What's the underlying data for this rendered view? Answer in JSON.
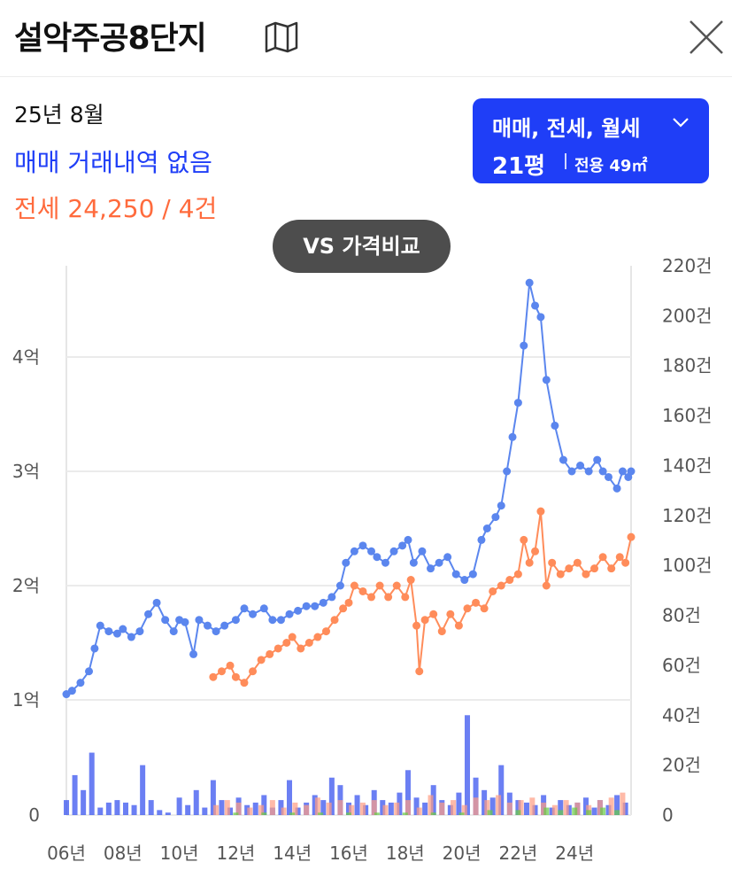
{
  "header": {
    "title": "설악주공8단지",
    "map_icon": "map-icon",
    "close_icon": "close-icon"
  },
  "summary": {
    "date": "25년 8월",
    "sale_text": "매매 거래내역 없음",
    "jeonse_text": "전세 24,250 / 4건"
  },
  "filter": {
    "types": "매매, 전세, 월세",
    "size": "21평",
    "area": "전용 49㎡"
  },
  "vs_button": "VS 가격비교",
  "colors": {
    "sale": "#5b86ee",
    "jeonse": "#ff8c5a",
    "sale_bar": "#3a54ef",
    "jeonse_bar": "#ff9c83",
    "monthly_bar": "#66cc44",
    "accent": "#1f3ef7",
    "jeonse_text": "#ff6b3d"
  },
  "chart_data": {
    "type": "line",
    "x_ticks": [
      "06년",
      "08년",
      "10년",
      "12년",
      "14년",
      "16년",
      "18년",
      "20년",
      "22년",
      "24년"
    ],
    "y_left_ticks": [
      "0",
      "1억",
      "2억",
      "3억",
      "4억"
    ],
    "y_right_ticks": [
      "0",
      "20건",
      "40건",
      "60건",
      "80건",
      "100건",
      "120건",
      "140건",
      "160건",
      "180건",
      "200건",
      "220건"
    ],
    "y_left_range": [
      0,
      48000
    ],
    "y_right_range": [
      0,
      220
    ],
    "series": [
      {
        "name": "매매",
        "points": [
          [
            2006.0,
            10500
          ],
          [
            2006.2,
            10800
          ],
          [
            2006.5,
            11500
          ],
          [
            2006.8,
            12500
          ],
          [
            2007.0,
            14500
          ],
          [
            2007.2,
            16500
          ],
          [
            2007.5,
            16000
          ],
          [
            2007.8,
            15800
          ],
          [
            2008.0,
            16200
          ],
          [
            2008.3,
            15500
          ],
          [
            2008.6,
            16000
          ],
          [
            2008.9,
            17500
          ],
          [
            2009.2,
            18500
          ],
          [
            2009.5,
            17000
          ],
          [
            2009.8,
            16000
          ],
          [
            2010.0,
            17000
          ],
          [
            2010.2,
            16800
          ],
          [
            2010.5,
            14000
          ],
          [
            2010.7,
            17000
          ],
          [
            2011.0,
            16500
          ],
          [
            2011.3,
            16000
          ],
          [
            2011.6,
            16500
          ],
          [
            2012.0,
            17000
          ],
          [
            2012.3,
            18000
          ],
          [
            2012.6,
            17500
          ],
          [
            2013.0,
            18000
          ],
          [
            2013.3,
            17000
          ],
          [
            2013.6,
            17000
          ],
          [
            2013.9,
            17500
          ],
          [
            2014.2,
            17800
          ],
          [
            2014.5,
            18200
          ],
          [
            2014.8,
            18200
          ],
          [
            2015.1,
            18500
          ],
          [
            2015.4,
            19000
          ],
          [
            2015.7,
            20000
          ],
          [
            2015.9,
            22000
          ],
          [
            2016.2,
            23000
          ],
          [
            2016.5,
            23500
          ],
          [
            2016.8,
            23000
          ],
          [
            2017.0,
            22500
          ],
          [
            2017.3,
            22000
          ],
          [
            2017.6,
            23000
          ],
          [
            2017.9,
            23500
          ],
          [
            2018.1,
            24000
          ],
          [
            2018.3,
            22000
          ],
          [
            2018.6,
            23000
          ],
          [
            2018.9,
            21500
          ],
          [
            2019.2,
            22000
          ],
          [
            2019.5,
            22500
          ],
          [
            2019.8,
            21000
          ],
          [
            2020.1,
            20500
          ],
          [
            2020.4,
            21000
          ],
          [
            2020.7,
            24000
          ],
          [
            2020.9,
            25000
          ],
          [
            2021.2,
            26000
          ],
          [
            2021.4,
            27000
          ],
          [
            2021.6,
            30000
          ],
          [
            2021.8,
            33000
          ],
          [
            2022.0,
            36000
          ],
          [
            2022.2,
            41000
          ],
          [
            2022.4,
            46500
          ],
          [
            2022.6,
            44500
          ],
          [
            2022.8,
            43500
          ],
          [
            2023.0,
            38000
          ],
          [
            2023.3,
            34000
          ],
          [
            2023.6,
            31000
          ],
          [
            2023.9,
            30000
          ],
          [
            2024.2,
            30500
          ],
          [
            2024.5,
            30000
          ],
          [
            2024.8,
            31000
          ],
          [
            2025.0,
            30000
          ],
          [
            2025.2,
            29500
          ],
          [
            2025.5,
            28500
          ],
          [
            2025.7,
            30000
          ],
          [
            2025.9,
            29500
          ],
          [
            2026.0,
            30000
          ]
        ]
      },
      {
        "name": "전세",
        "points": [
          [
            2011.2,
            12000
          ],
          [
            2011.5,
            12500
          ],
          [
            2011.8,
            13000
          ],
          [
            2012.0,
            12000
          ],
          [
            2012.3,
            11500
          ],
          [
            2012.6,
            12500
          ],
          [
            2012.9,
            13500
          ],
          [
            2013.2,
            14000
          ],
          [
            2013.5,
            14500
          ],
          [
            2013.8,
            15000
          ],
          [
            2014.0,
            15500
          ],
          [
            2014.3,
            14500
          ],
          [
            2014.6,
            15000
          ],
          [
            2014.9,
            15500
          ],
          [
            2015.2,
            16000
          ],
          [
            2015.5,
            17000
          ],
          [
            2015.8,
            18000
          ],
          [
            2016.0,
            18500
          ],
          [
            2016.2,
            20000
          ],
          [
            2016.5,
            19500
          ],
          [
            2016.8,
            19000
          ],
          [
            2017.1,
            20000
          ],
          [
            2017.4,
            19000
          ],
          [
            2017.7,
            20000
          ],
          [
            2018.0,
            19000
          ],
          [
            2018.2,
            20500
          ],
          [
            2018.4,
            16500
          ],
          [
            2018.5,
            12500
          ],
          [
            2018.7,
            17000
          ],
          [
            2019.0,
            17500
          ],
          [
            2019.3,
            16000
          ],
          [
            2019.6,
            17500
          ],
          [
            2019.9,
            16500
          ],
          [
            2020.2,
            18000
          ],
          [
            2020.5,
            18500
          ],
          [
            2020.8,
            18000
          ],
          [
            2021.1,
            19500
          ],
          [
            2021.4,
            20000
          ],
          [
            2021.7,
            20500
          ],
          [
            2022.0,
            21000
          ],
          [
            2022.2,
            24000
          ],
          [
            2022.4,
            22000
          ],
          [
            2022.6,
            23000
          ],
          [
            2022.8,
            26500
          ],
          [
            2023.0,
            20000
          ],
          [
            2023.2,
            22000
          ],
          [
            2023.5,
            21000
          ],
          [
            2023.8,
            21500
          ],
          [
            2024.1,
            22000
          ],
          [
            2024.4,
            21000
          ],
          [
            2024.7,
            21500
          ],
          [
            2025.0,
            22500
          ],
          [
            2025.3,
            21500
          ],
          [
            2025.6,
            22500
          ],
          [
            2025.8,
            22000
          ],
          [
            2026.0,
            24250
          ]
        ]
      }
    ],
    "bars": [
      {
        "name": "매매",
        "points": [
          [
            2006.0,
            6
          ],
          [
            2006.3,
            16
          ],
          [
            2006.6,
            10
          ],
          [
            2006.9,
            25
          ],
          [
            2007.2,
            3
          ],
          [
            2007.5,
            5
          ],
          [
            2007.8,
            6
          ],
          [
            2008.1,
            5
          ],
          [
            2008.4,
            4
          ],
          [
            2008.7,
            20
          ],
          [
            2009.0,
            6
          ],
          [
            2009.3,
            2
          ],
          [
            2009.6,
            1
          ],
          [
            2010.0,
            7
          ],
          [
            2010.3,
            4
          ],
          [
            2010.6,
            10
          ],
          [
            2010.9,
            3
          ],
          [
            2011.2,
            14
          ],
          [
            2011.5,
            6
          ],
          [
            2011.8,
            3
          ],
          [
            2012.1,
            7
          ],
          [
            2012.4,
            4
          ],
          [
            2012.7,
            5
          ],
          [
            2013.0,
            8
          ],
          [
            2013.3,
            3
          ],
          [
            2013.6,
            6
          ],
          [
            2013.9,
            14
          ],
          [
            2014.2,
            3
          ],
          [
            2014.5,
            5
          ],
          [
            2014.8,
            8
          ],
          [
            2015.1,
            6
          ],
          [
            2015.4,
            15
          ],
          [
            2015.7,
            12
          ],
          [
            2016.0,
            5
          ],
          [
            2016.3,
            8
          ],
          [
            2016.6,
            4
          ],
          [
            2016.9,
            10
          ],
          [
            2017.2,
            6
          ],
          [
            2017.5,
            5
          ],
          [
            2017.8,
            9
          ],
          [
            2018.1,
            18
          ],
          [
            2018.4,
            7
          ],
          [
            2018.7,
            5
          ],
          [
            2019.0,
            12
          ],
          [
            2019.3,
            6
          ],
          [
            2019.6,
            4
          ],
          [
            2019.9,
            9
          ],
          [
            2020.2,
            40
          ],
          [
            2020.5,
            15
          ],
          [
            2020.8,
            10
          ],
          [
            2021.1,
            7
          ],
          [
            2021.4,
            20
          ],
          [
            2021.7,
            9
          ],
          [
            2022.0,
            6
          ],
          [
            2022.3,
            5
          ],
          [
            2022.6,
            4
          ],
          [
            2022.9,
            8
          ],
          [
            2023.2,
            3
          ],
          [
            2023.5,
            6
          ],
          [
            2023.8,
            4
          ],
          [
            2024.1,
            5
          ],
          [
            2024.4,
            7
          ],
          [
            2024.7,
            3
          ],
          [
            2024.9,
            6
          ],
          [
            2025.2,
            4
          ],
          [
            2025.5,
            8
          ],
          [
            2025.8,
            5
          ]
        ]
      },
      {
        "name": "전세",
        "points": [
          [
            2011.3,
            4
          ],
          [
            2011.7,
            6
          ],
          [
            2012.1,
            5
          ],
          [
            2012.5,
            3
          ],
          [
            2012.9,
            4
          ],
          [
            2013.3,
            6
          ],
          [
            2013.7,
            3
          ],
          [
            2014.1,
            5
          ],
          [
            2014.5,
            4
          ],
          [
            2014.9,
            7
          ],
          [
            2015.3,
            5
          ],
          [
            2015.7,
            6
          ],
          [
            2016.1,
            4
          ],
          [
            2016.5,
            5
          ],
          [
            2016.9,
            6
          ],
          [
            2017.3,
            4
          ],
          [
            2017.7,
            5
          ],
          [
            2018.1,
            6
          ],
          [
            2018.5,
            3
          ],
          [
            2018.9,
            8
          ],
          [
            2019.3,
            5
          ],
          [
            2019.7,
            6
          ],
          [
            2020.1,
            4
          ],
          [
            2020.5,
            7
          ],
          [
            2020.9,
            6
          ],
          [
            2021.3,
            8
          ],
          [
            2021.7,
            5
          ],
          [
            2022.1,
            6
          ],
          [
            2022.5,
            7
          ],
          [
            2022.9,
            5
          ],
          [
            2023.3,
            4
          ],
          [
            2023.7,
            6
          ],
          [
            2024.1,
            5
          ],
          [
            2024.5,
            4
          ],
          [
            2024.9,
            6
          ],
          [
            2025.3,
            7
          ],
          [
            2025.7,
            9
          ]
        ]
      },
      {
        "name": "월세",
        "points": [
          [
            2012.0,
            1
          ],
          [
            2013.0,
            1
          ],
          [
            2014.0,
            1
          ],
          [
            2015.0,
            1
          ],
          [
            2016.0,
            1
          ],
          [
            2017.0,
            1
          ],
          [
            2018.0,
            1
          ],
          [
            2019.0,
            1
          ],
          [
            2020.0,
            1
          ],
          [
            2021.0,
            2
          ],
          [
            2022.0,
            2
          ],
          [
            2023.0,
            3
          ],
          [
            2023.5,
            2
          ],
          [
            2024.0,
            3
          ],
          [
            2024.5,
            2
          ],
          [
            2025.0,
            3
          ],
          [
            2025.5,
            2
          ]
        ]
      }
    ],
    "grid": true
  }
}
